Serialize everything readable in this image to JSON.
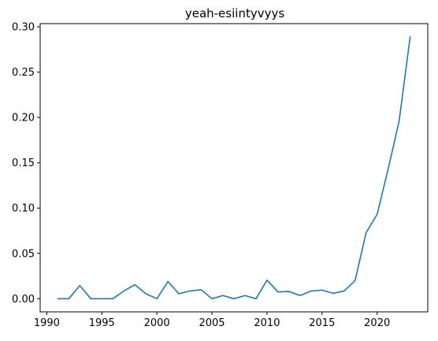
{
  "chart_data": {
    "type": "line",
    "title": "yeah-esiintyvyys",
    "xlabel": "",
    "ylabel": "",
    "xlim": [
      1989.4,
      2024.6
    ],
    "ylim": [
      -0.0145,
      0.3035
    ],
    "x_ticks": [
      1990,
      1995,
      2000,
      2005,
      2010,
      2015,
      2020
    ],
    "y_ticks": [
      0.0,
      0.05,
      0.1,
      0.15,
      0.2,
      0.25,
      0.3
    ],
    "y_tick_labels": [
      "0.00",
      "0.05",
      "0.10",
      "0.15",
      "0.20",
      "0.25",
      "0.30"
    ],
    "grid": false,
    "line_color": "#1f77b4",
    "series": [
      {
        "x": [
          1991,
          1992,
          1993,
          1994,
          1995,
          1996,
          1997,
          1998,
          1999,
          2000,
          2001,
          2002,
          2003,
          2004,
          2005,
          2006,
          2007,
          2008,
          2009,
          2010,
          2011,
          2012,
          2013,
          2014,
          2015,
          2016,
          2017,
          2018,
          2019,
          2020,
          2021,
          2022,
          2023
        ],
        "values": [
          0.0,
          0.0,
          0.0145,
          0.0,
          0.0,
          0.0,
          0.0085,
          0.0155,
          0.0055,
          0.0,
          0.019,
          0.0055,
          0.0085,
          0.01,
          0.0,
          0.0035,
          0.0,
          0.0035,
          0.0,
          0.0205,
          0.0075,
          0.008,
          0.0035,
          0.0085,
          0.0095,
          0.006,
          0.0085,
          0.02,
          0.073,
          0.093,
          0.143,
          0.196,
          0.289
        ]
      }
    ]
  }
}
